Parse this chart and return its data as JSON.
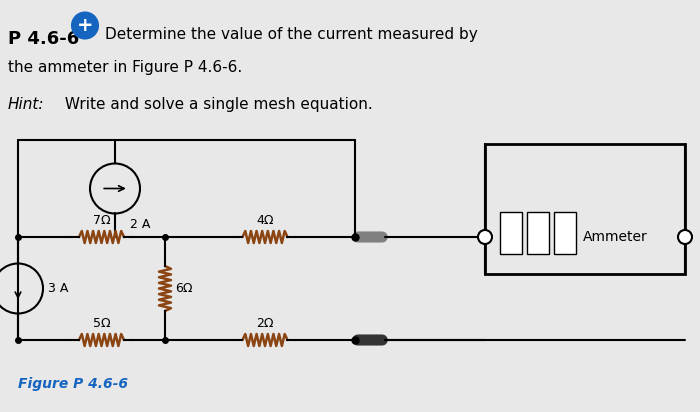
{
  "bg_color": "#e8e8e8",
  "title_text": "P 4.6-6",
  "title_color": "#000000",
  "plus_color": "#1565c0",
  "problem_text": "Determine the value of the current measured by\nthe ammeter in Figure P 4.6-6.",
  "hint_text": "Hint:",
  "hint_rest": " Write and solve a single mesh equation.",
  "figure_label": "Figure P 4.6-6",
  "figure_label_color": "#1565c0",
  "line_color": "#000000",
  "resistor_color": "#8B4513",
  "ammeter_box_color": "#000000",
  "wire_color": "#000000"
}
